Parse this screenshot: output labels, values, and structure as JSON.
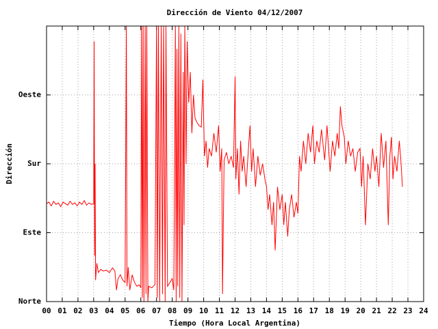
{
  "chart_data": {
    "type": "line",
    "title": "Dirección de Viento 04/12/2007",
    "x_label": "Tiempo (Hora Local Argentina)",
    "y_label": "Dirección",
    "grid": true,
    "xlim": [
      0,
      24
    ],
    "ylim": [
      0,
      360
    ],
    "xticks": [
      {
        "value": 0,
        "label": "00"
      },
      {
        "value": 1,
        "label": "01"
      },
      {
        "value": 2,
        "label": "02"
      },
      {
        "value": 3,
        "label": "03"
      },
      {
        "value": 4,
        "label": "04"
      },
      {
        "value": 5,
        "label": "05"
      },
      {
        "value": 6,
        "label": "06"
      },
      {
        "value": 7,
        "label": "07"
      },
      {
        "value": 8,
        "label": "08"
      },
      {
        "value": 9,
        "label": "09"
      },
      10,
      11,
      12,
      13,
      14,
      15,
      16,
      17,
      18,
      19,
      20,
      21,
      22,
      23,
      24
    ],
    "yticks": [
      {
        "value": 0,
        "label": "Norte"
      },
      {
        "value": 90,
        "label": "Este"
      },
      {
        "value": 180,
        "label": "Sur"
      },
      {
        "value": 270,
        "label": "Oeste"
      }
    ],
    "x": [
      0.0,
      0.15,
      0.3,
      0.45,
      0.6,
      0.75,
      0.9,
      1.05,
      1.2,
      1.35,
      1.5,
      1.65,
      1.8,
      1.95,
      2.1,
      2.25,
      2.4,
      2.55,
      2.7,
      2.85,
      3.0,
      3.03,
      3.06,
      3.09,
      3.12,
      3.2,
      3.3,
      3.45,
      3.6,
      3.8,
      4.0,
      4.2,
      4.35,
      4.45,
      4.55,
      4.7,
      4.85,
      5.0,
      5.08,
      5.12,
      5.2,
      5.3,
      5.45,
      5.6,
      5.75,
      5.9,
      6.0,
      6.05,
      6.1,
      6.15,
      6.2,
      6.28,
      6.33,
      6.38,
      6.45,
      6.5,
      6.7,
      6.9,
      7.0,
      7.05,
      7.12,
      7.2,
      7.3,
      7.38,
      7.45,
      7.55,
      7.6,
      7.7,
      7.85,
      8.0,
      8.1,
      8.2,
      8.25,
      8.3,
      8.35,
      8.42,
      8.48,
      8.55,
      8.62,
      8.7,
      8.75,
      8.8,
      8.88,
      8.95,
      9.05,
      9.15,
      9.25,
      9.35,
      9.45,
      9.55,
      9.7,
      9.85,
      9.95,
      10.05,
      10.15,
      10.25,
      10.35,
      10.5,
      10.65,
      10.8,
      10.95,
      11.05,
      11.15,
      11.2,
      11.3,
      11.45,
      11.6,
      11.75,
      11.9,
      12.0,
      12.05,
      12.15,
      12.25,
      12.35,
      12.45,
      12.55,
      12.7,
      12.85,
      12.95,
      13.05,
      13.15,
      13.3,
      13.45,
      13.6,
      13.75,
      13.9,
      14.0,
      14.1,
      14.2,
      14.35,
      14.45,
      14.55,
      14.7,
      14.85,
      15.0,
      15.1,
      15.2,
      15.35,
      15.45,
      15.6,
      15.75,
      15.9,
      16.0,
      16.1,
      16.2,
      16.35,
      16.5,
      16.65,
      16.8,
      16.95,
      17.05,
      17.2,
      17.35,
      17.5,
      17.7,
      17.85,
      17.95,
      18.05,
      18.2,
      18.35,
      18.5,
      18.6,
      18.7,
      18.8,
      18.95,
      19.05,
      19.2,
      19.35,
      19.5,
      19.65,
      19.8,
      19.95,
      20.05,
      20.15,
      20.3,
      20.45,
      20.6,
      20.75,
      20.9,
      21.0,
      21.15,
      21.3,
      21.45,
      21.6,
      21.75,
      21.85,
      21.95,
      22.05,
      22.15,
      22.3,
      22.45,
      22.55,
      22.65
    ],
    "series": [
      {
        "color": "#ff0000",
        "values": [
          128,
          130,
          125,
          131,
          127,
          129,
          124,
          130,
          128,
          126,
          131,
          127,
          129,
          125,
          130,
          127,
          132,
          126,
          129,
          127,
          128,
          340,
          60,
          180,
          28,
          50,
          38,
          42,
          40,
          41,
          38,
          44,
          40,
          15,
          30,
          35,
          28,
          25,
          360,
          20,
          45,
          15,
          35,
          25,
          20,
          22,
          18,
          360,
          5,
          360,
          0,
          360,
          10,
          360,
          0,
          20,
          18,
          22,
          360,
          5,
          360,
          0,
          360,
          10,
          360,
          0,
          360,
          20,
          25,
          30,
          15,
          360,
          0,
          330,
          20,
          360,
          5,
          350,
          0,
          300,
          100,
          360,
          180,
          340,
          260,
          300,
          220,
          270,
          240,
          235,
          230,
          228,
          290,
          190,
          210,
          175,
          200,
          190,
          220,
          195,
          230,
          170,
          200,
          10,
          185,
          195,
          180,
          190,
          175,
          294,
          160,
          200,
          140,
          210,
          170,
          190,
          150,
          200,
          230,
          170,
          200,
          150,
          190,
          165,
          180,
          160,
          150,
          120,
          140,
          100,
          130,
          67,
          150,
          120,
          140,
          100,
          130,
          85,
          120,
          140,
          110,
          130,
          115,
          190,
          170,
          210,
          180,
          220,
          195,
          230,
          180,
          210,
          195,
          225,
          185,
          230,
          200,
          170,
          210,
          190,
          220,
          200,
          255,
          230,
          215,
          180,
          210,
          190,
          200,
          170,
          195,
          200,
          150,
          190,
          100,
          180,
          160,
          200,
          170,
          190,
          150,
          220,
          175,
          210,
          100,
          190,
          215,
          160,
          190,
          170,
          210,
          185,
          150
        ]
      }
    ]
  }
}
